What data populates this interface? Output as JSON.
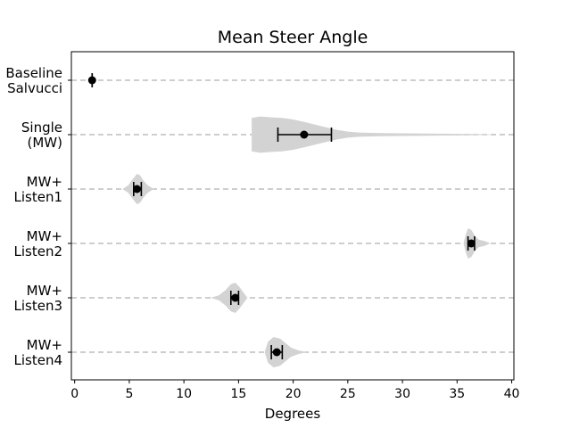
{
  "chart_data": {
    "type": "violin",
    "title": "Mean Steer Angle",
    "xlabel": "Degrees",
    "ylabel": "",
    "xlim": [
      -0.3,
      40.2
    ],
    "xticks": [
      0,
      5,
      10,
      15,
      20,
      25,
      30,
      35,
      40
    ],
    "grid": "dashed horizontal line per category",
    "violin_color": "#d3d3d3",
    "marker_color": "#000000",
    "gridline_color": "#bdbdbd",
    "categories": [
      {
        "label_lines": [
          "Baseline",
          "Salvucci"
        ],
        "mean": 1.6,
        "ci": [
          1.6,
          1.6
        ],
        "violin": null
      },
      {
        "label_lines": [
          "Single",
          "(MW)"
        ],
        "mean": 21.0,
        "ci": [
          18.6,
          23.5
        ],
        "violin": {
          "min": 16.2,
          "max": 38.2,
          "profile": [
            [
              16.2,
              0.55
            ],
            [
              17.0,
              0.6
            ],
            [
              18.0,
              0.57
            ],
            [
              19.0,
              0.55
            ],
            [
              20.0,
              0.5
            ],
            [
              21.0,
              0.42
            ],
            [
              22.0,
              0.33
            ],
            [
              23.0,
              0.24
            ],
            [
              24.0,
              0.16
            ],
            [
              25.0,
              0.1
            ],
            [
              26.0,
              0.07
            ],
            [
              28.0,
              0.05
            ],
            [
              31.0,
              0.04
            ],
            [
              34.0,
              0.03
            ],
            [
              36.0,
              0.02
            ],
            [
              38.2,
              0.005
            ]
          ]
        }
      },
      {
        "label_lines": [
          "MW+",
          "Listen1"
        ],
        "mean": 5.7,
        "ci": [
          5.4,
          6.1
        ],
        "violin": {
          "min": 4.4,
          "max": 7.2,
          "profile": [
            [
              4.4,
              0.01
            ],
            [
              4.9,
              0.12
            ],
            [
              5.3,
              0.32
            ],
            [
              5.7,
              0.5
            ],
            [
              6.0,
              0.45
            ],
            [
              6.3,
              0.28
            ],
            [
              6.7,
              0.12
            ],
            [
              7.2,
              0.01
            ]
          ]
        }
      },
      {
        "label_lines": [
          "MW+",
          "Listen2"
        ],
        "mean": 36.3,
        "ci": [
          36.0,
          36.6
        ],
        "violin": {
          "min": 35.6,
          "max": 38.0,
          "profile": [
            [
              35.6,
              0.02
            ],
            [
              35.8,
              0.3
            ],
            [
              36.0,
              0.5
            ],
            [
              36.3,
              0.45
            ],
            [
              36.7,
              0.22
            ],
            [
              37.0,
              0.12
            ],
            [
              37.5,
              0.08
            ],
            [
              38.0,
              0.01
            ]
          ]
        }
      },
      {
        "label_lines": [
          "MW+",
          "Listen3"
        ],
        "mean": 14.7,
        "ci": [
          14.3,
          15.0
        ],
        "violin": {
          "min": 12.5,
          "max": 15.8,
          "profile": [
            [
              12.5,
              0.01
            ],
            [
              13.2,
              0.08
            ],
            [
              13.8,
              0.25
            ],
            [
              14.3,
              0.45
            ],
            [
              14.7,
              0.5
            ],
            [
              15.1,
              0.35
            ],
            [
              15.5,
              0.15
            ],
            [
              15.8,
              0.01
            ]
          ]
        }
      },
      {
        "label_lines": [
          "MW+",
          "Listen4"
        ],
        "mean": 18.5,
        "ci": [
          18.0,
          19.0
        ],
        "violin": {
          "min": 17.4,
          "max": 21.2,
          "profile": [
            [
              17.4,
              0.02
            ],
            [
              17.7,
              0.35
            ],
            [
              18.2,
              0.5
            ],
            [
              18.8,
              0.45
            ],
            [
              19.3,
              0.3
            ],
            [
              19.8,
              0.15
            ],
            [
              20.5,
              0.06
            ],
            [
              21.2,
              0.01
            ]
          ]
        }
      }
    ]
  }
}
